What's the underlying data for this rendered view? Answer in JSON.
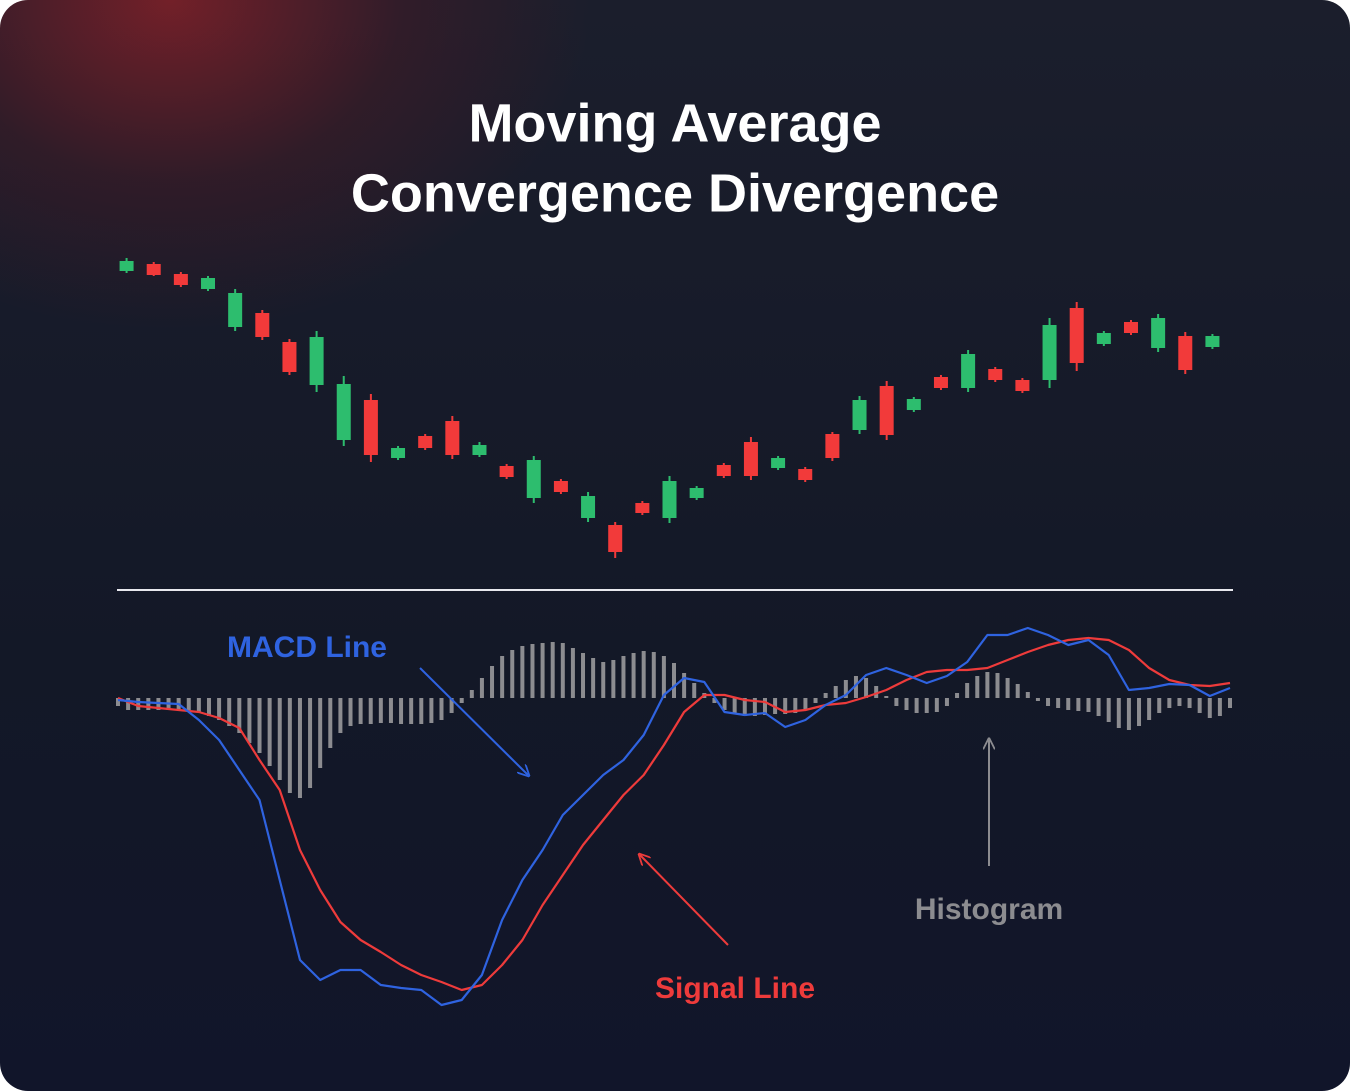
{
  "chart_data": [
    {
      "type": "candlestick",
      "title": [
        "Moving Average",
        "Convergence Divergence"
      ],
      "open": [
        329,
        336,
        326,
        311,
        273,
        287,
        258,
        215,
        160,
        200,
        142,
        164,
        179,
        145,
        134,
        102,
        119,
        82,
        75,
        97,
        82,
        102,
        135,
        158,
        132,
        131,
        166,
        170,
        214,
        190,
        223,
        212,
        231,
        220,
        220,
        292,
        256,
        278,
        252,
        264,
        253
      ],
      "high": [
        342,
        338,
        328,
        324,
        311,
        290,
        261,
        269,
        224,
        206,
        154,
        166,
        184,
        158,
        136,
        144,
        121,
        108,
        78,
        99,
        124,
        114,
        137,
        163,
        144,
        133,
        168,
        204,
        219,
        203,
        225,
        250,
        233,
        222,
        282,
        298,
        269,
        280,
        286,
        268,
        266
      ],
      "low": [
        327,
        324,
        313,
        309,
        269,
        260,
        225,
        208,
        154,
        138,
        140,
        150,
        141,
        143,
        121,
        97,
        106,
        78,
        42,
        85,
        77,
        100,
        122,
        120,
        130,
        118,
        139,
        166,
        160,
        188,
        210,
        208,
        218,
        207,
        212,
        229,
        254,
        265,
        248,
        226,
        251
      ],
      "close": [
        339,
        325,
        315,
        322,
        307,
        263,
        228,
        263,
        216,
        145,
        152,
        152,
        145,
        155,
        123,
        140,
        108,
        104,
        48,
        87,
        119,
        112,
        124,
        124,
        142,
        120,
        142,
        200,
        165,
        201,
        212,
        246,
        220,
        209,
        275,
        237,
        267,
        267,
        282,
        230,
        264
      ],
      "up_color": "#2dbd6e",
      "down_color": "#f23a3a",
      "ylim": [
        30,
        360
      ]
    },
    {
      "type": "macd",
      "x": [
        0,
        2,
        4,
        6,
        8,
        10,
        12,
        14,
        16,
        18,
        20,
        22,
        24,
        26,
        28,
        30,
        32,
        34,
        36,
        38,
        40,
        42,
        44,
        46,
        48,
        50,
        52,
        54,
        56,
        58,
        60,
        62,
        64,
        66,
        68,
        70,
        72,
        74,
        76,
        78,
        80,
        82,
        84,
        86,
        88,
        90,
        92,
        94,
        96,
        98,
        100,
        102,
        104,
        106,
        108,
        110
      ],
      "series": [
        {
          "name": "MACD Line",
          "color": "#2f63e0",
          "values": [
            -2,
            -4,
            -5,
            -6,
            -22,
            -42,
            -72,
            -102,
            -182,
            -262,
            -282,
            -272,
            -272,
            -287,
            -290,
            -292,
            -307,
            -302,
            -277,
            -222,
            -182,
            -152,
            -117,
            -97,
            -77,
            -62,
            -37,
            3,
            20,
            16,
            -14,
            -17,
            -15,
            -29,
            -22,
            -7,
            3,
            23,
            30,
            23,
            15,
            22,
            36,
            63,
            63,
            70,
            63,
            53,
            58,
            43,
            8,
            10,
            14,
            13,
            2,
            10
          ]
        },
        {
          "name": "Signal Line",
          "color": "#ee3b3b",
          "values": [
            0,
            -8,
            -10,
            -12,
            -14,
            -20,
            -30,
            -62,
            -92,
            -152,
            -192,
            -224,
            -242,
            -254,
            -267,
            -277,
            -284,
            -292,
            -287,
            -267,
            -242,
            -207,
            -177,
            -147,
            -122,
            -97,
            -77,
            -47,
            -14,
            3,
            3,
            -2,
            -4,
            -14,
            -12,
            -7,
            -5,
            1,
            8,
            18,
            26,
            28,
            28,
            30,
            38,
            46,
            53,
            58,
            60,
            58,
            48,
            30,
            18,
            13,
            12,
            15
          ]
        }
      ],
      "histogram": {
        "name": "Histogram",
        "color": "#8c8c90",
        "x": [
          0,
          1,
          2,
          3,
          4,
          5,
          6,
          7,
          8,
          9,
          10,
          11,
          12,
          13,
          14,
          15,
          16,
          17,
          18,
          19,
          20,
          21,
          22,
          23,
          24,
          25,
          26,
          27,
          28,
          29,
          30,
          31,
          32,
          33,
          34,
          35,
          36,
          37,
          38,
          39,
          40,
          41,
          42,
          43,
          44,
          45,
          46,
          47,
          48,
          49,
          50,
          51,
          52,
          53,
          54,
          55,
          56,
          57,
          58,
          59,
          60,
          61,
          62,
          63,
          64,
          65,
          66,
          67,
          68,
          69,
          70,
          71,
          72,
          73,
          74,
          75,
          76,
          77,
          78,
          79,
          80,
          81,
          82,
          83,
          84,
          85,
          86,
          87,
          88,
          89,
          90,
          91,
          92,
          93,
          94,
          95,
          96,
          97,
          98,
          99,
          100,
          101,
          102,
          103,
          104,
          105,
          106,
          107,
          108,
          109,
          110
        ],
        "values": [
          -8,
          -12,
          -12,
          -12,
          -12,
          -12,
          -12,
          -12,
          -14,
          -18,
          -22,
          -28,
          -35,
          -45,
          -55,
          -68,
          -82,
          -95,
          -100,
          -90,
          -70,
          -50,
          -35,
          -28,
          -26,
          -26,
          -25,
          -25,
          -26,
          -26,
          -26,
          -25,
          -22,
          -15,
          -5,
          8,
          20,
          32,
          42,
          48,
          52,
          54,
          55,
          56,
          55,
          50,
          45,
          40,
          36,
          38,
          42,
          45,
          47,
          46,
          42,
          35,
          25,
          15,
          5,
          -5,
          -12,
          -15,
          -18,
          -18,
          -17,
          -16,
          -16,
          -15,
          -12,
          -5,
          5,
          12,
          18,
          22,
          20,
          12,
          2,
          -8,
          -12,
          -15,
          -15,
          -14,
          -8,
          5,
          15,
          22,
          26,
          25,
          20,
          14,
          6,
          -3,
          -8,
          -10,
          -12,
          -13,
          -14,
          -18,
          -24,
          -30,
          -32,
          -28,
          -22,
          -15,
          -10,
          -8,
          -10,
          -15,
          -20,
          -18,
          -10
        ]
      },
      "xlim": [
        0,
        110
      ],
      "ylim": [
        -312,
        120
      ]
    }
  ]
}
